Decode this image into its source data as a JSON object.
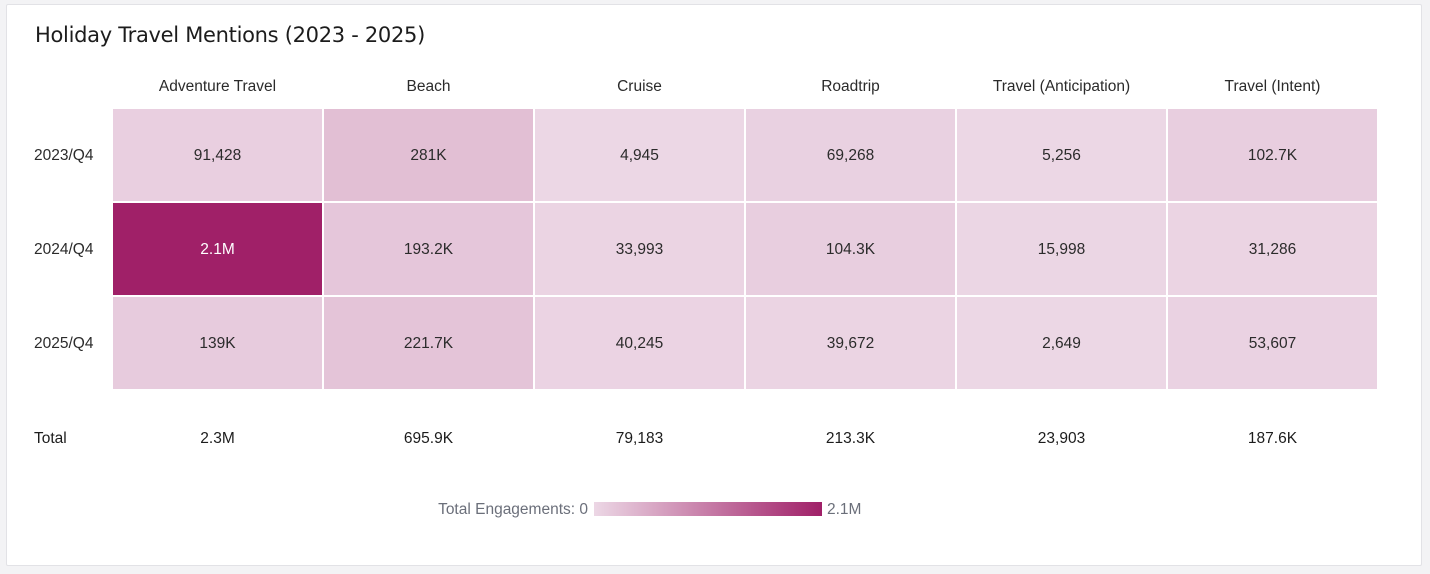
{
  "chart_data": {
    "type": "heatmap",
    "title": "Holiday Travel Mentions (2023 - 2025)",
    "columns": [
      "Adventure Travel",
      "Beach",
      "Cruise",
      "Roadtrip",
      "Travel (Anticipation)",
      "Travel (Intent)"
    ],
    "rows": [
      {
        "label": "2023/Q4",
        "values": [
          91428,
          281000,
          4945,
          69268,
          5256,
          102700
        ],
        "labels": [
          "91,428",
          "281K",
          "4,945",
          "69,268",
          "5,256",
          "102.7K"
        ]
      },
      {
        "label": "2024/Q4",
        "values": [
          2100000,
          193200,
          33993,
          104300,
          15998,
          31286
        ],
        "labels": [
          "2.1M",
          "193.2K",
          "33,993",
          "104.3K",
          "15,998",
          "31,286"
        ]
      },
      {
        "label": "2025/Q4",
        "values": [
          139000,
          221700,
          40245,
          39672,
          2649,
          53607
        ],
        "labels": [
          "139K",
          "221.7K",
          "40,245",
          "39,672",
          "2,649",
          "53,607"
        ]
      }
    ],
    "totals": {
      "label": "Total",
      "values": [
        2300000,
        695900,
        79183,
        213300,
        23903,
        187600
      ],
      "labels": [
        "2.3M",
        "695.9K",
        "79,183",
        "213.3K",
        "23,903",
        "187.6K"
      ]
    },
    "color_scale": {
      "label": "Total Engagements:",
      "min": 0,
      "max": 2100000,
      "min_label": "0",
      "max_label": "2.1M",
      "low_color": "#ecd7e5",
      "high_color": "#a02068"
    }
  }
}
